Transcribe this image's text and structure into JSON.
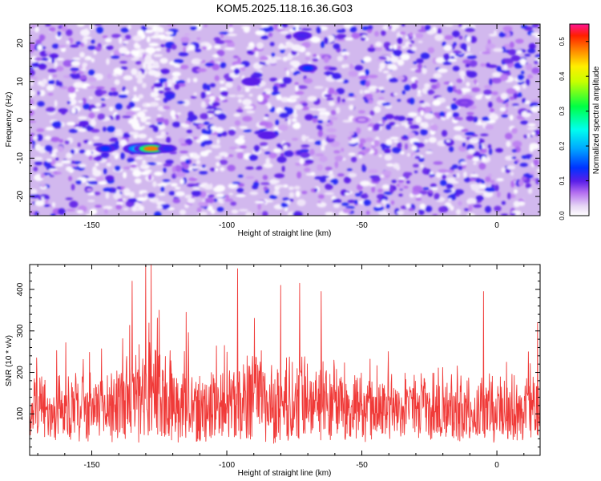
{
  "title": "KOM5.2025.118.16.36.G03",
  "chart_data": [
    {
      "type": "heatmap",
      "xlabel": "Height of straight line (km)",
      "ylabel": "Frequency (Hz)",
      "xlim": [
        -173,
        16
      ],
      "ylim": [
        -25,
        25
      ],
      "x_ticks": [
        -150,
        -100,
        -50,
        0
      ],
      "x_tick_labels": [
        "-150",
        "-100",
        "-50",
        "0"
      ],
      "y_ticks": [
        -20,
        -10,
        0,
        10,
        20
      ],
      "y_tick_labels": [
        "-20",
        "-10",
        "0",
        "10",
        "20"
      ],
      "colorbar": {
        "label": "Normalized spectral amplitude",
        "range": [
          0,
          0.55
        ],
        "ticks": [
          0.0,
          0.1,
          0.2,
          0.3,
          0.4,
          0.5
        ],
        "tick_labels": [
          "0.0",
          "0.1",
          "0.2",
          "0.3",
          "0.4",
          "0.5"
        ]
      },
      "features": [
        {
          "x": -145,
          "y": -7.5,
          "value": 0.14
        },
        {
          "x": -132,
          "y": -7.5,
          "value": 0.25
        },
        {
          "x": -128,
          "y": -7.5,
          "value": 0.48
        },
        {
          "x": -122,
          "y": -7.5,
          "value": 0.12
        },
        {
          "x": -91,
          "y": 10,
          "value": 0.1
        },
        {
          "x": -85,
          "y": -4,
          "value": 0.1
        },
        {
          "x": -72,
          "y": 22,
          "value": 0.11
        },
        {
          "x": -70,
          "y": 13.5,
          "value": 0.14
        },
        {
          "x": -50,
          "y": 0,
          "value": 0.05
        },
        {
          "x": -12,
          "y": 4.5,
          "value": 0.08
        }
      ],
      "grid": false
    },
    {
      "type": "line",
      "xlabel": "Height of straight line (km)",
      "ylabel": "SNR (10 * v/v)",
      "xlim": [
        -173,
        16
      ],
      "ylim": [
        0,
        460
      ],
      "x_ticks": [
        -150,
        -100,
        -50,
        0
      ],
      "x_tick_labels": [
        "-150",
        "-100",
        "-50",
        "0"
      ],
      "y_ticks": [
        100,
        200,
        300,
        400
      ],
      "y_tick_labels": [
        "100",
        "200",
        "300",
        "400"
      ],
      "color": "#f03a38",
      "peaks": [
        {
          "x": -135,
          "y": 420
        },
        {
          "x": -130,
          "y": 460
        },
        {
          "x": -128,
          "y": 460
        },
        {
          "x": -125,
          "y": 350
        },
        {
          "x": -115,
          "y": 345
        },
        {
          "x": -96,
          "y": 450
        },
        {
          "x": -80,
          "y": 410
        },
        {
          "x": -73,
          "y": 415
        },
        {
          "x": -65,
          "y": 395
        },
        {
          "x": -5,
          "y": 395
        },
        {
          "x": 15,
          "y": 320
        }
      ],
      "baseline_range": [
        40,
        200
      ],
      "grid": false
    }
  ]
}
